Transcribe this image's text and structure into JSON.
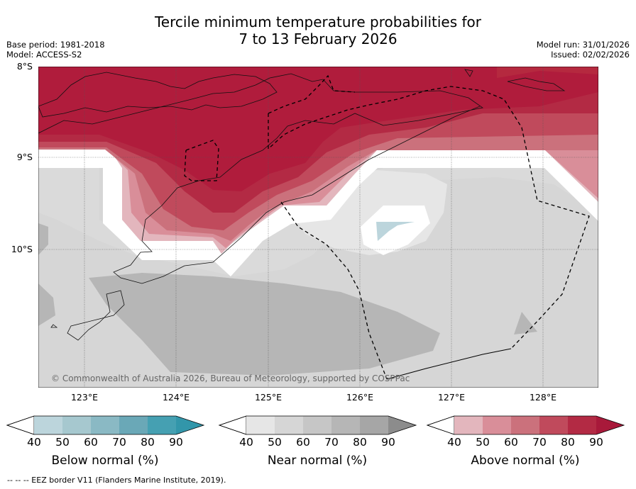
{
  "title_line1": "Tercile minimum temperature probabilities for",
  "title_line2": "7 to 13 February 2026",
  "base_period": "Base period: 1981-2018",
  "model": "Model: ACCESS-S2",
  "model_run": "Model run: 31/01/2026",
  "issued": "Issued: 02/02/2026",
  "lat_labels": [
    "8°S",
    "9°S",
    "10°S"
  ],
  "lon_labels": [
    "123°E",
    "124°E",
    "125°E",
    "126°E",
    "127°E",
    "128°E"
  ],
  "copyright": "© Commonwealth of Australia 2026, Bureau of Meteorology, supported by COSPPac",
  "colorbars": [
    {
      "label": "Below normal (%)",
      "ticks": [
        "40",
        "50",
        "60",
        "70",
        "80",
        "90"
      ],
      "colors": [
        "#ffffff",
        "#bcd5dc",
        "#a6c8cf",
        "#8ab9c4",
        "#6aa8b7",
        "#45a0b2",
        "#3296aa"
      ]
    },
    {
      "label": "Near normal (%)",
      "ticks": [
        "40",
        "50",
        "60",
        "70",
        "80",
        "90"
      ],
      "colors": [
        "#ffffff",
        "#e6e6e6",
        "#d6d6d6",
        "#c6c6c6",
        "#b6b6b6",
        "#a6a6a6",
        "#8c8c8c"
      ]
    },
    {
      "label": "Above normal (%)",
      "ticks": [
        "40",
        "50",
        "60",
        "70",
        "80",
        "90"
      ],
      "colors": [
        "#ffffff",
        "#e3b6bd",
        "#d98e99",
        "#cb717c",
        "#c04a5c",
        "#b32a44",
        "#a8193a"
      ]
    }
  ],
  "footer": "-- -- -- EEZ border V11 (Flanders Marine Institute, 2019)."
}
